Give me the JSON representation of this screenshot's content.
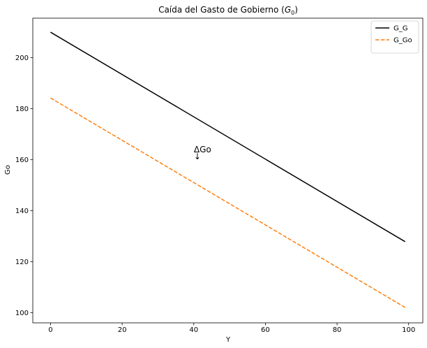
{
  "chart_data": {
    "type": "line",
    "title": {
      "main": "Caída del Gasto de Gobierno (",
      "symbol": "G",
      "sub": "0",
      "close": ")"
    },
    "xlabel": "Y",
    "ylabel": "Go",
    "xlim": [
      -4.95,
      103.95
    ],
    "ylim": [
      96.0,
      215.5
    ],
    "xticks": [
      0,
      20,
      40,
      60,
      80,
      100
    ],
    "yticks": [
      100,
      120,
      140,
      160,
      180,
      200
    ],
    "grid": false,
    "legend_position": "top-right",
    "series": [
      {
        "name": "G_G",
        "color": "#000000",
        "dash": "solid",
        "x": [
          0,
          99
        ],
        "y": [
          210.0,
          127.84
        ]
      },
      {
        "name": "G_Go",
        "color": "#ff7f0e",
        "dash": "dashed",
        "x": [
          0,
          99
        ],
        "y": [
          184.2,
          102.04
        ]
      }
    ],
    "annotations": [
      {
        "text": "ΔGo",
        "arrow": "↓",
        "x": 41,
        "y": 161
      }
    ]
  }
}
